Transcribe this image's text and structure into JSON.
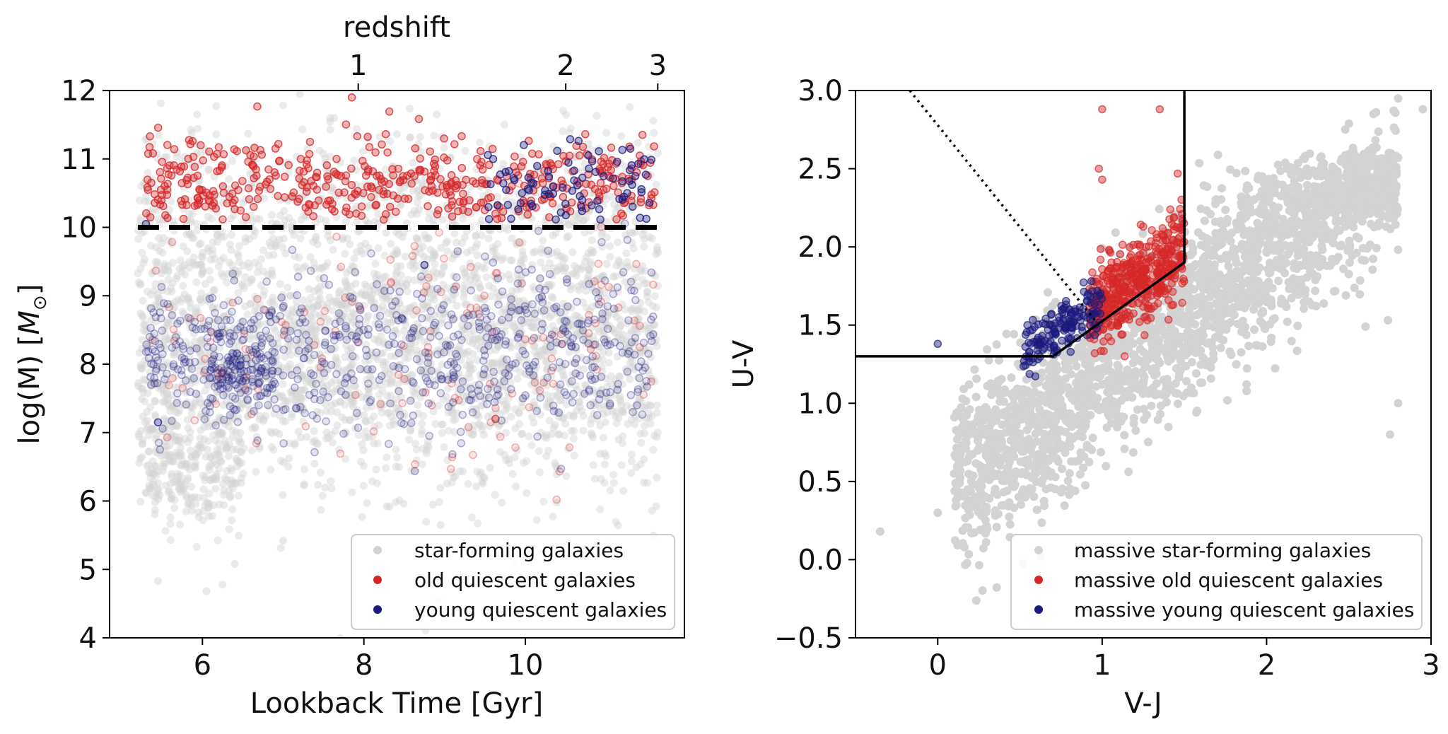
{
  "chart_data": [
    {
      "type": "scatter",
      "xlabel": "Lookback Time [Gyr]",
      "ylabel": "log(M) [M⊙]",
      "ylabel_prefix": "log(M) [",
      "ylabel_symbol": "M",
      "ylabel_subscript": "⊙",
      "ylabel_suffix": "]",
      "top_axis": {
        "label": "redshift",
        "ticks": [
          1,
          2,
          3
        ],
        "tick_positions_gyr": [
          7.93,
          10.5,
          11.64
        ]
      },
      "xlim": [
        4.85,
        11.97
      ],
      "ylim": [
        4,
        12
      ],
      "xticks": [
        6,
        8,
        10
      ],
      "yticks": [
        4,
        5,
        6,
        7,
        8,
        9,
        10,
        11,
        12
      ],
      "threshold": {
        "y": 10,
        "x_range": [
          5.2,
          11.65
        ],
        "style": "dashed",
        "color": "#000000"
      },
      "legend_position": "lower-right",
      "series": [
        {
          "name": "star-forming galaxies",
          "color": "#d3d3d3",
          "regions": [
            {
              "x_range": [
                5.2,
                11.65
              ],
              "y_mean": 8.3,
              "y_sd": 1.05,
              "count": 2600
            },
            {
              "x_range": [
                5.2,
                11.65
              ],
              "y_mean": 10.5,
              "y_sd": 0.55,
              "count": 400
            },
            {
              "x_range": [
                5.3,
                6.5
              ],
              "y_mean": 6.5,
              "y_sd": 0.5,
              "count": 250
            }
          ],
          "outliers": [
            [
              5.45,
              4.83
            ],
            [
              6.05,
              4.68
            ],
            [
              6.4,
              5.08
            ],
            [
              7.0,
              5.42
            ],
            [
              8.95,
              5.65
            ]
          ]
        },
        {
          "name": "old quiescent galaxies",
          "color": "#d62728",
          "regions": [
            {
              "x_range": [
                5.3,
                11.6
              ],
              "y_mean": 10.65,
              "y_sd": 0.32,
              "y_min": 10.1,
              "count": 460
            },
            {
              "x_range": [
                5.3,
                11.6
              ],
              "y_mean": 8.3,
              "y_sd": 0.85,
              "count": 140,
              "faint": true
            }
          ],
          "outliers": [
            [
              5.35,
              11.33
            ],
            [
              7.85,
              11.9
            ],
            [
              9.63,
              7.2
            ]
          ]
        },
        {
          "name": "young quiescent galaxies",
          "color": "#1a1a7e",
          "regions": [
            {
              "x_range": [
                5.3,
                11.6
              ],
              "y_mean": 8.2,
              "y_sd": 0.62,
              "count": 620,
              "faint": true
            },
            {
              "x_range": [
                6.0,
                6.9
              ],
              "y_mean": 7.9,
              "y_sd": 0.32,
              "count": 120,
              "faint": true
            },
            {
              "x_range": [
                9.5,
                11.6
              ],
              "y_mean": 10.55,
              "y_sd": 0.35,
              "y_min": 10.1,
              "count": 85
            }
          ],
          "outliers": [
            [
              5.3,
              10.05
            ],
            [
              5.45,
              7.15
            ],
            [
              8.75,
              9.45
            ],
            [
              11.3,
              11.15
            ]
          ]
        }
      ]
    },
    {
      "type": "scatter",
      "xlabel": "V-J",
      "ylabel": "U-V",
      "xlim": [
        -0.5,
        3.0
      ],
      "ylim": [
        -0.5,
        3.0
      ],
      "xticks": [
        0,
        1,
        2,
        3
      ],
      "yticks": [
        -0.5,
        0.0,
        0.5,
        1.0,
        1.5,
        2.0,
        2.5,
        3.0
      ],
      "xtick_labels": [
        "0",
        "1",
        "2",
        "3"
      ],
      "ytick_labels": [
        "−0.5",
        "0.0",
        "0.5",
        "1.0",
        "1.5",
        "2.0",
        "2.5",
        "3.0"
      ],
      "selection_box": [
        [
          -0.5,
          1.3
        ],
        [
          0.7,
          1.3
        ],
        [
          1.5,
          1.9
        ],
        [
          1.5,
          3.0
        ]
      ],
      "dotted_line": [
        [
          -0.17,
          3.0
        ],
        [
          0.98,
          1.5
        ]
      ],
      "legend_position": "lower-right",
      "series": [
        {
          "name": "massive star-forming galaxies",
          "color": "#d3d3d3",
          "regions": [
            {
              "type": "band",
              "x_range": [
                0.1,
                2.8
              ],
              "slope": 0.78,
              "intercept": 0.43,
              "spread": 0.28,
              "count": 2400
            }
          ],
          "outliers": [
            [
              -0.35,
              0.18
            ],
            [
              0.0,
              0.3
            ],
            [
              2.65,
              2.85
            ],
            [
              2.8,
              2.95
            ],
            [
              2.95,
              2.88
            ],
            [
              2.75,
              0.8
            ],
            [
              2.8,
              1.0
            ],
            [
              0.9,
              1.05
            ],
            [
              0.1,
              0.55
            ]
          ]
        },
        {
          "name": "massive old quiescent galaxies",
          "color": "#d62728",
          "regions": [
            {
              "type": "band",
              "x_range": [
                0.92,
                1.5
              ],
              "slope": 0.73,
              "intercept": 0.9,
              "spread": 0.14,
              "count": 480
            }
          ],
          "outliers": [
            [
              1.0,
              2.88
            ],
            [
              0.98,
              2.5
            ],
            [
              1.0,
              2.43
            ],
            [
              1.35,
              2.88
            ]
          ]
        },
        {
          "name": "massive young quiescent galaxies",
          "color": "#1a1a7e",
          "regions": [
            {
              "type": "blob",
              "x_range": [
                0.52,
                1.0
              ],
              "slope": 0.65,
              "intercept": 1.0,
              "spread": 0.09,
              "count": 160
            }
          ],
          "outliers": [
            [
              0.0,
              1.38
            ]
          ]
        }
      ]
    }
  ]
}
